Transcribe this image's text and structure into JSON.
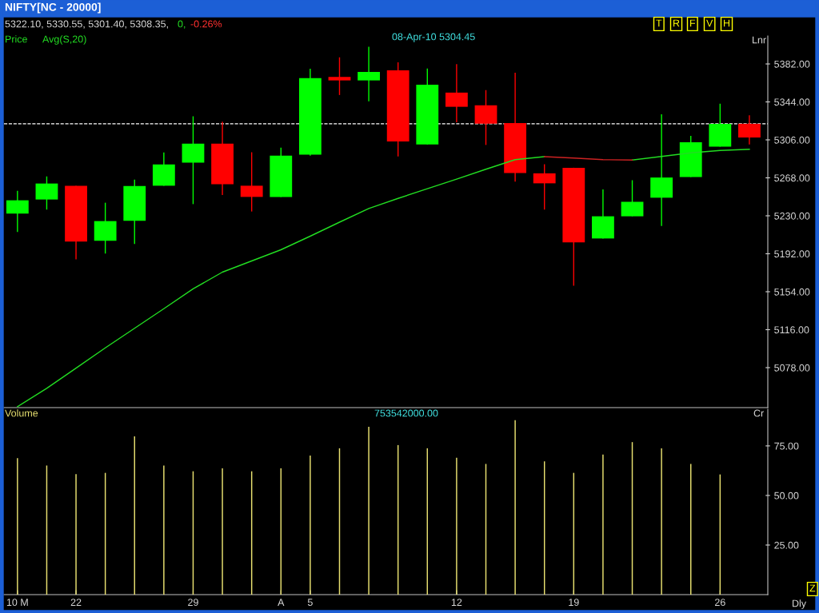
{
  "chart_data": [
    {
      "type": "candlestick",
      "title": "NIFTY[NC - 20000]",
      "categories": [
        null,
        null,
        null,
        null,
        null,
        null,
        null,
        null,
        null,
        null,
        null,
        null,
        null,
        null,
        null,
        null,
        null,
        null,
        null,
        null,
        null,
        null,
        null,
        null,
        null,
        null
      ],
      "ohlc": [
        [
          5232.2,
          5255.1,
          5213.8,
          5245.5
        ],
        [
          5246.3,
          5269.4,
          5236.2,
          5262.3
        ],
        [
          5260.1,
          5260.1,
          5186.4,
          5204.2
        ],
        [
          5205.0,
          5243.1,
          5192.2,
          5224.7
        ],
        [
          5225.0,
          5266.2,
          5201.8,
          5259.9
        ],
        [
          5260.1,
          5293.4,
          5260.1,
          5281.4
        ],
        [
          5283.2,
          5329.6,
          5241.7,
          5302.2
        ],
        [
          5302.2,
          5324.3,
          5250.8,
          5261.7
        ],
        [
          5260.1,
          5293.6,
          5234.3,
          5248.9
        ],
        [
          5248.9,
          5298.2,
          5248.9,
          5290.2
        ],
        [
          5291.2,
          5377.2,
          5290.2,
          5367.9
        ],
        [
          5369.0,
          5388.6,
          5350.9,
          5365.5
        ],
        [
          5365.5,
          5399.3,
          5344.7,
          5374.0
        ],
        [
          5375.6,
          5383.6,
          5289.4,
          5304.45
        ],
        [
          5301.5,
          5377.4,
          5301.5,
          5361.3
        ],
        [
          5353.3,
          5381.8,
          5323.6,
          5339.1
        ],
        [
          5340.6,
          5355.8,
          5300.9,
          5322.2
        ],
        [
          5322.8,
          5373.2,
          5264.2,
          5272.9
        ],
        [
          5272.5,
          5281.7,
          5236.2,
          5262.5
        ],
        [
          5278.1,
          5278.1,
          5160.0,
          5203.5
        ],
        [
          5207.3,
          5256.4,
          5207.3,
          5229.5
        ],
        [
          5229.5,
          5265.6,
          5229.5,
          5244.0
        ],
        [
          5248.1,
          5331.7,
          5219.9,
          5268.3
        ],
        [
          5268.9,
          5310.1,
          5268.9,
          5303.7
        ],
        [
          5299.2,
          5342.2,
          5299.2,
          5322.0
        ],
        [
          5322.1,
          5330.55,
          5301.4,
          5308.35
        ]
      ],
      "colors": [
        "#00ff00",
        "#00ff00",
        "#ff0000",
        "#00ff00",
        "#00ff00",
        "#00ff00",
        "#00ff00",
        "#ff0000",
        "#ff0000",
        "#00ff00",
        "#00ff00",
        "#ff0000",
        "#00ff00",
        "#ff0000",
        "#00ff00",
        "#ff0000",
        "#ff0000",
        "#ff0000",
        "#ff0000",
        "#ff0000",
        "#00ff00",
        "#00ff00",
        "#00ff00",
        "#00ff00",
        "#00ff00",
        "#ff0000"
      ],
      "series": [
        {
          "name": "Avg(S,20)",
          "type": "line",
          "color": "#22dd22",
          "values": [
            5039,
            5057.3,
            5077.5,
            5097.8,
            5117.4,
            5137.0,
            5156.9,
            5173.6,
            5184.8,
            5196.0,
            5209.6,
            5223.6,
            5237.3,
            5247.4,
            5257.1,
            5266.7,
            5276.6,
            5286.2,
            5289.2,
            null,
            null,
            5285.8,
            5289.4,
            5293.0,
            5295.4,
            5296.6
          ]
        },
        {
          "type": "line",
          "color": "#cc2222",
          "values": [
            null,
            null,
            null,
            null,
            null,
            null,
            null,
            null,
            null,
            null,
            null,
            null,
            null,
            null,
            null,
            null,
            null,
            null,
            5289.2,
            5287.8,
            5286.2,
            5285.8,
            null,
            null,
            null,
            null
          ]
        }
      ],
      "ylim": [
        5038,
        5410
      ],
      "yticks": [
        {
          "value": 5078,
          "label": "5078.00"
        },
        {
          "value": 5116,
          "label": "5116.00"
        },
        {
          "value": 5154,
          "label": "5154.00"
        },
        {
          "value": 5192,
          "label": "5192.00"
        },
        {
          "value": 5230,
          "label": "5230.00"
        },
        {
          "value": 5268,
          "label": "5268.00"
        },
        {
          "value": 5306,
          "label": "5306.00"
        },
        {
          "value": 5344,
          "label": "5344.00"
        },
        {
          "value": 5382,
          "label": "5382.00"
        }
      ],
      "ref_lines": [
        {
          "axis": "y",
          "value": 5322.1,
          "color": "#ffffff",
          "line_style": "dashed"
        }
      ],
      "legend": "top left",
      "tick_labels": "y",
      "annotations": [
        "5322.10, 5330.55, 5301.40, 5308.35,",
        "0,",
        "-0.26%",
        "Price",
        "08-Apr-10 5304.45",
        "Lnr",
        "T",
        "R",
        "F",
        "V",
        "H"
      ]
    },
    {
      "type": "bar",
      "title": "Volume",
      "categories": [
        "10 M",
        null,
        "22",
        null,
        null,
        null,
        "29",
        null,
        null,
        "A",
        "5",
        null,
        null,
        null,
        null,
        "12",
        null,
        null,
        null,
        "19",
        null,
        null,
        null,
        null,
        "26",
        null
      ],
      "values": [
        68.8,
        65.1,
        60.8,
        61.4,
        79.8,
        65.1,
        62.2,
        63.7,
        62.2,
        63.7,
        70.1,
        73.8,
        84.6,
        75.4,
        73.8,
        69.0,
        65.9,
        88.0,
        67.2,
        61.4,
        70.6,
        76.9,
        73.8,
        65.9,
        60.6,
        null
      ],
      "color": "#e8e070",
      "ylim": [
        0,
        93.5
      ],
      "yticks": [
        {
          "value": 25,
          "label": "25.00"
        },
        {
          "value": 50,
          "label": "50.00"
        },
        {
          "value": 75,
          "label": "75.00"
        }
      ],
      "annotations": [
        "753542000.00",
        "Cr",
        "Z",
        "Dly"
      ]
    }
  ]
}
